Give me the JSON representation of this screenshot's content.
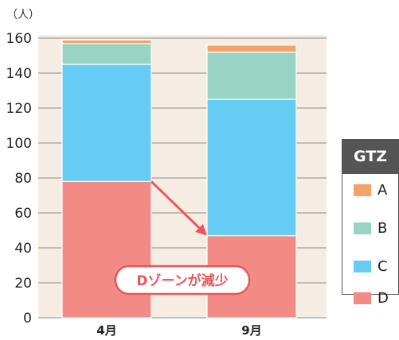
{
  "chart_data": {
    "type": "bar",
    "stacked": true,
    "categories": [
      "4月",
      "9月"
    ],
    "series": [
      {
        "name": "D",
        "values": [
          78,
          47
        ],
        "color": "#f28b85"
      },
      {
        "name": "C",
        "values": [
          67,
          78
        ],
        "color": "#66ccf4"
      },
      {
        "name": "B",
        "values": [
          12,
          27
        ],
        "color": "#98d3c4"
      },
      {
        "name": "A",
        "values": [
          2,
          4
        ],
        "color": "#f5a26b"
      }
    ],
    "unit_label": "（人）",
    "ylim": [
      0,
      160
    ],
    "yticks": [
      0,
      20,
      40,
      60,
      80,
      100,
      120,
      140,
      160
    ],
    "ytick_labels": [
      "0",
      "20",
      "40",
      "60",
      "80",
      "100",
      "120",
      "140",
      "160"
    ],
    "grid": true,
    "legend": {
      "title": "GTZ",
      "placement": "right",
      "entries": [
        "A",
        "B",
        "C",
        "D"
      ]
    },
    "annotation": {
      "text": "Dゾーンが減少",
      "color": "#e8575c"
    },
    "plot_background": "#f5ede3"
  }
}
